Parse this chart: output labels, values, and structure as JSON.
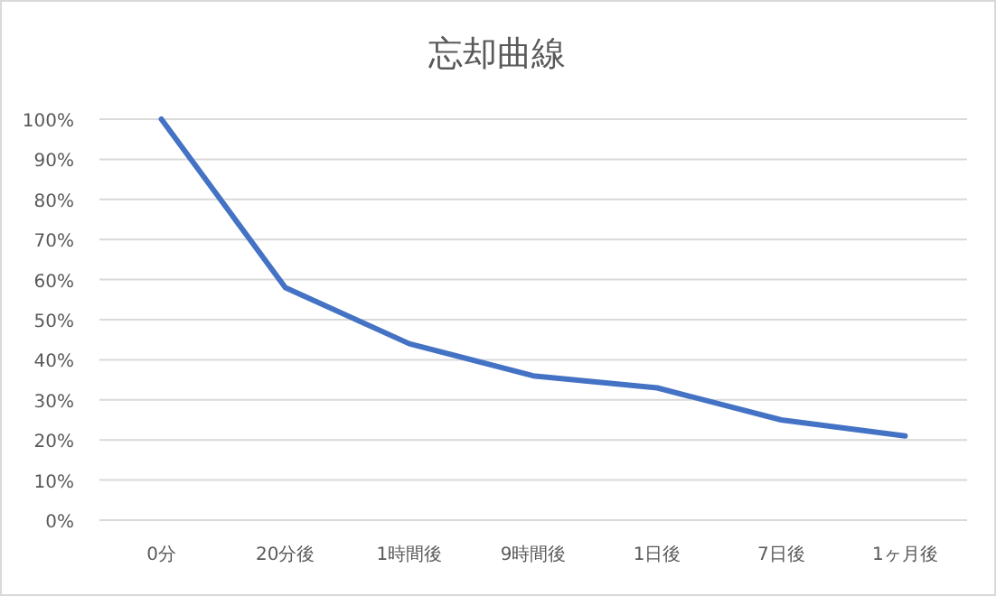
{
  "chart_data": {
    "type": "line",
    "title": "忘却曲線",
    "categories": [
      "0分",
      "20分後",
      "1時間後",
      "9時間後",
      "1日後",
      "7日後",
      "1ヶ月後"
    ],
    "series": [
      {
        "color": "#4472c4",
        "values": [
          100,
          58,
          44,
          36,
          33,
          25,
          21
        ]
      }
    ],
    "ylim": [
      0,
      100
    ],
    "yticks": [
      {
        "value": 0,
        "label": "0%"
      },
      {
        "value": 10,
        "label": "10%"
      },
      {
        "value": 20,
        "label": "20%"
      },
      {
        "value": 30,
        "label": "30%"
      },
      {
        "value": 40,
        "label": "40%"
      },
      {
        "value": 50,
        "label": "50%"
      },
      {
        "value": 60,
        "label": "60%"
      },
      {
        "value": 70,
        "label": "70%"
      },
      {
        "value": 80,
        "label": "80%"
      },
      {
        "value": 90,
        "label": "90%"
      },
      {
        "value": 100,
        "label": "100%"
      }
    ],
    "grid": "y",
    "marker": "none",
    "line_style": "solid"
  }
}
